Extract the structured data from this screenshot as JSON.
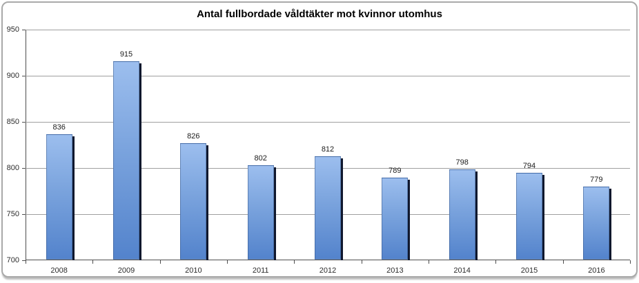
{
  "chart_data": {
    "type": "bar",
    "title": "Antal fullbordade våldtäkter mot kvinnor utomhus",
    "categories": [
      "2008",
      "2009",
      "2010",
      "2011",
      "2012",
      "2013",
      "2014",
      "2015",
      "2016"
    ],
    "values": [
      836,
      915,
      826,
      802,
      812,
      789,
      798,
      794,
      779
    ],
    "xlabel": "",
    "ylabel": "",
    "ylim": [
      700,
      950
    ],
    "y_ticks": [
      700,
      750,
      800,
      850,
      900,
      950
    ],
    "grid": true,
    "legend_position": "none",
    "data_labels_shown": true,
    "colors": {
      "bar_gradient_top": "#9CBEEE",
      "bar_gradient_bottom": "#5383CC",
      "bar_edge_shadow": "#10182E",
      "gridline": "#9E9E9E",
      "axis_line": "#4D4D4D",
      "frame_border": "#A9A9A9",
      "background": "#FFFFFF",
      "text": "#1A1A1A"
    }
  }
}
